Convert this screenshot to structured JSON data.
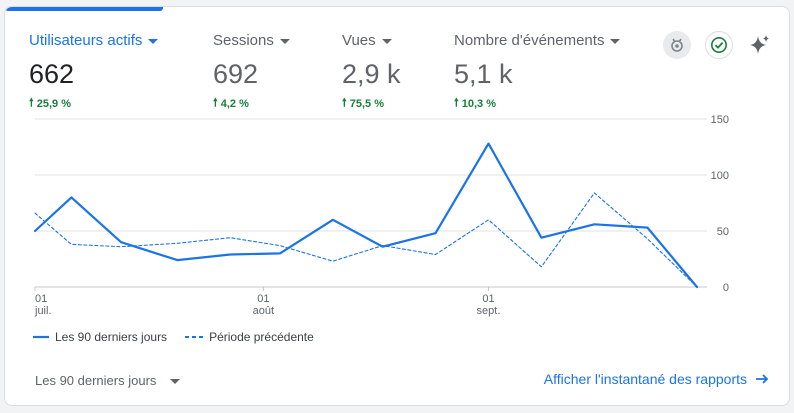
{
  "metrics": [
    {
      "label": "Utilisateurs actifs",
      "value": "662",
      "change": "25,9 %"
    },
    {
      "label": "Sessions",
      "value": "692",
      "change": "4,2 %"
    },
    {
      "label": "Vues",
      "value": "2,9 k",
      "change": "75,5 %"
    },
    {
      "label": "Nombre d'événements",
      "value": "5,1 k",
      "change": "10,3 %"
    }
  ],
  "colors": {
    "accent": "#1a73e8",
    "positive": "#188038",
    "gridline": "#e0e0e0"
  },
  "icons": [
    "insights-badge-icon",
    "check-circle-icon",
    "sparkle-icon"
  ],
  "chart_data": {
    "type": "line",
    "title": "",
    "xlabel": "",
    "ylabel": "",
    "ylim": [
      0,
      150
    ],
    "yticks": [
      0,
      50,
      100,
      150
    ],
    "x_ticks": [
      {
        "day": "01",
        "month": "juil.",
        "pos": 0.0
      },
      {
        "day": "01",
        "month": "août",
        "pos": 0.345
      },
      {
        "day": "01",
        "month": "sept.",
        "pos": 0.685
      }
    ],
    "grid": true,
    "legend_position": "bottom-left",
    "series": [
      {
        "name": "Les 90 derniers jours",
        "style": "solid",
        "x": [
          0,
          0.055,
          0.13,
          0.215,
          0.295,
          0.37,
          0.45,
          0.525,
          0.605,
          0.685,
          0.765,
          0.845,
          0.925,
          1.0
        ],
        "y": [
          50,
          80,
          40,
          24,
          29,
          30,
          60,
          36,
          48,
          128,
          44,
          56,
          53,
          0
        ]
      },
      {
        "name": "Période précédente",
        "style": "dashed",
        "x": [
          0,
          0.055,
          0.13,
          0.215,
          0.295,
          0.37,
          0.45,
          0.525,
          0.605,
          0.685,
          0.765,
          0.845,
          0.925,
          1.0
        ],
        "y": [
          66,
          38,
          36,
          39,
          44,
          37,
          23,
          37,
          29,
          60,
          18,
          84,
          43,
          0
        ]
      }
    ]
  },
  "footer": {
    "range_label": "Les 90 derniers jours",
    "link_label": "Afficher l'instantané des rapports"
  }
}
